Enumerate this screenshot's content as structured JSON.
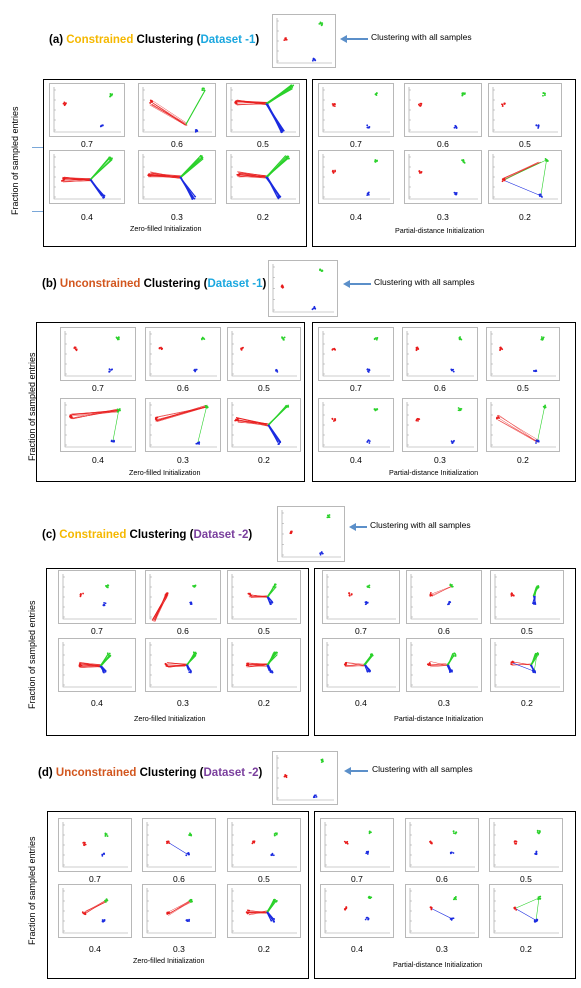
{
  "colors": {
    "red": "#e81b1b",
    "green": "#2ad12a",
    "blue": "#1b2be0",
    "constrained": "#f5b800",
    "unconstrained": "#d2561e",
    "dataset1": "#1aa7df",
    "dataset2": "#7a3f9d"
  },
  "y_axis_label": "Fraction of sampled entries",
  "zero_filled_label": "Zero-filled Initialization",
  "partial_distance_label": "Partial-distance Initialization",
  "all_samples_note": "Clustering with all samples",
  "fractions_top": [
    "0.7",
    "0.6",
    "0.5"
  ],
  "fractions_bottom": [
    "0.4",
    "0.3",
    "0.2"
  ],
  "sections": [
    {
      "id": "a",
      "prefix": "(a) ",
      "kind": "Constrained",
      "middle": " Clustering (",
      "dataset": "Dataset -1",
      "suffix": ")"
    },
    {
      "id": "b",
      "prefix": "(b) ",
      "kind": "Unconstrained",
      "middle": " Clustering (",
      "dataset": "Dataset -1",
      "suffix": ")"
    },
    {
      "id": "c",
      "prefix": "(c) ",
      "kind": "Constrained",
      "middle": " Clustering (",
      "dataset": "Dataset -2",
      "suffix": ")"
    },
    {
      "id": "d",
      "prefix": "(d) ",
      "kind": "Unconstrained",
      "middle": " Clustering (",
      "dataset": "Dataset -2",
      "suffix": ")"
    }
  ]
}
